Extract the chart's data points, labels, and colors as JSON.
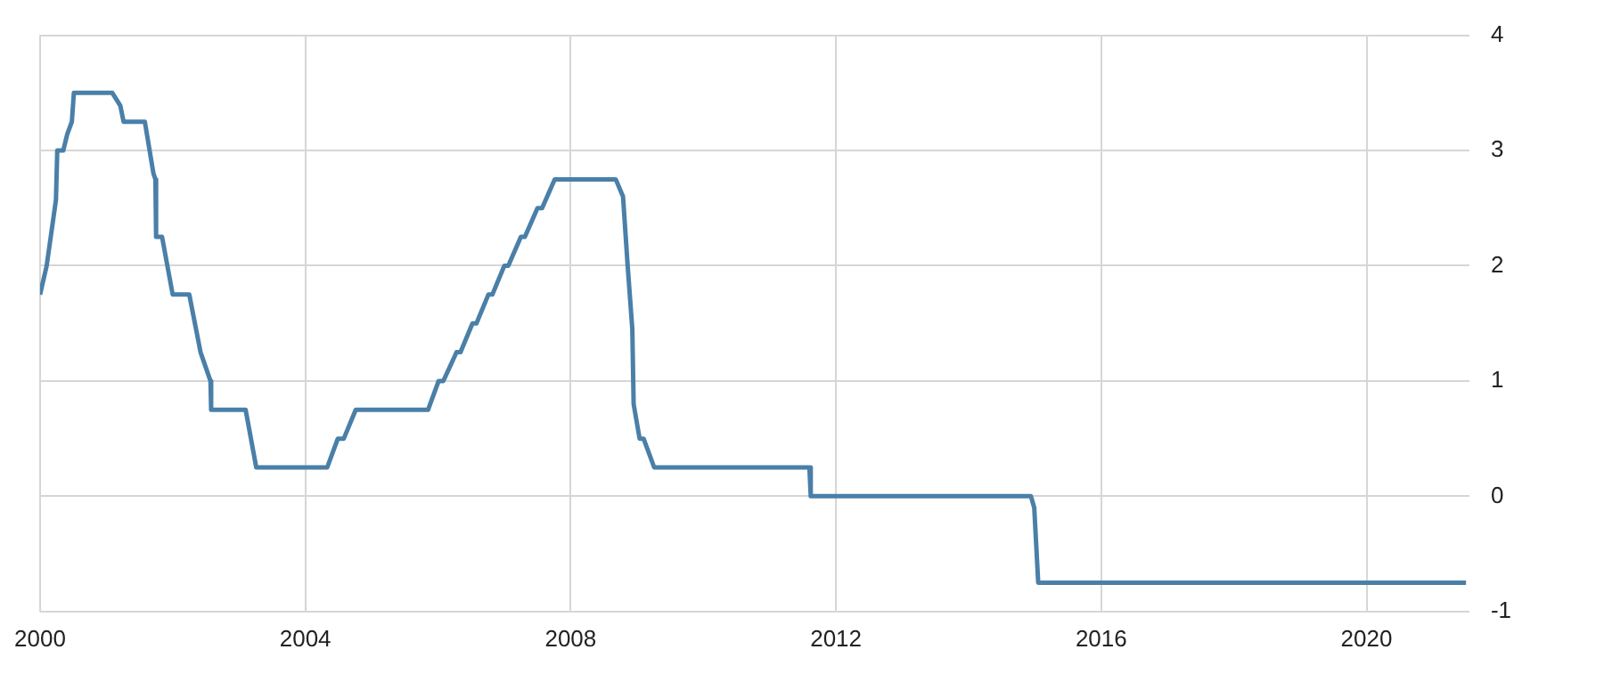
{
  "chart_data": {
    "type": "line",
    "x": [
      2000.0,
      2000.1,
      2000.24,
      2000.26,
      2000.35,
      2000.41,
      2000.48,
      2000.51,
      2001.09,
      2001.21,
      2001.26,
      2001.58,
      2001.71,
      2001.74,
      2001.75,
      2001.84,
      2002.0,
      2002.25,
      2002.42,
      2002.57,
      2002.58,
      2003.1,
      2003.26,
      2004.33,
      2004.49,
      2004.58,
      2004.76,
      2005.85,
      2006.01,
      2006.08,
      2006.28,
      2006.34,
      2006.52,
      2006.58,
      2006.76,
      2006.82,
      2007.0,
      2007.06,
      2007.25,
      2007.31,
      2007.5,
      2007.57,
      2007.76,
      2008.68,
      2008.79,
      2008.86,
      2008.93,
      2008.95,
      2009.04,
      2009.1,
      2009.26,
      2011.6,
      2011.62,
      2014.94,
      2014.99,
      2015.05,
      2021.5
    ],
    "series": [
      {
        "color": "#4a7fa8",
        "values": [
          1.75,
          2.0,
          2.57,
          3.0,
          3.0,
          3.14,
          3.25,
          3.5,
          3.5,
          3.39,
          3.25,
          3.25,
          2.8,
          2.75,
          2.25,
          2.25,
          1.75,
          1.75,
          1.25,
          1.0,
          0.75,
          0.75,
          0.25,
          0.25,
          0.5,
          0.5,
          0.75,
          0.75,
          1.0,
          1.0,
          1.25,
          1.25,
          1.5,
          1.5,
          1.75,
          1.75,
          2.0,
          2.0,
          2.25,
          2.25,
          2.5,
          2.5,
          2.75,
          2.75,
          2.6,
          2.0,
          1.45,
          0.8,
          0.5,
          0.5,
          0.25,
          0.25,
          0.0,
          0.0,
          -0.1,
          -0.75,
          -0.75
        ]
      }
    ],
    "xlim": [
      2000,
      2021.55
    ],
    "xticks": [
      2000,
      2004,
      2008,
      2012,
      2016,
      2020
    ],
    "ylim": [
      -1,
      4
    ],
    "yticks": [
      -1,
      0,
      1,
      2,
      3,
      4
    ],
    "grid": true,
    "legend": false,
    "marker": "none",
    "line_style": "solid"
  }
}
